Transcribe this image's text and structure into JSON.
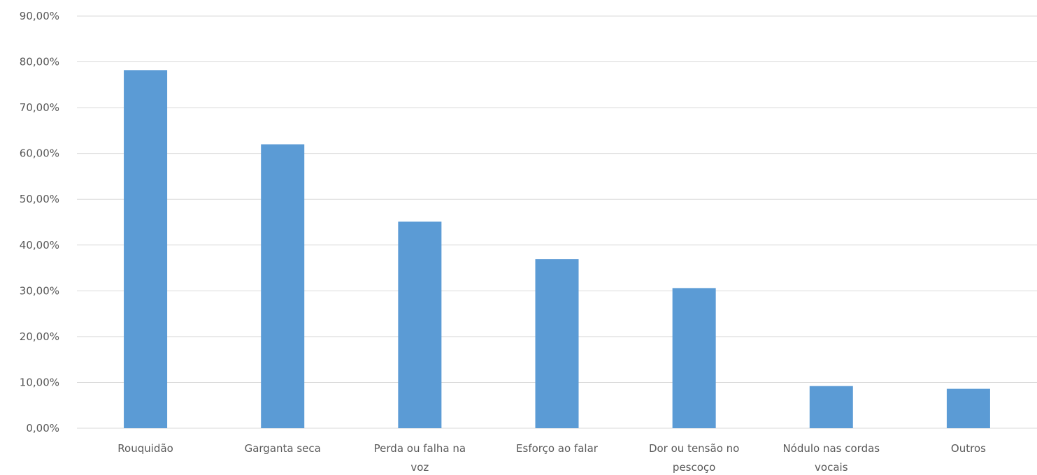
{
  "chart_data": {
    "type": "bar",
    "title": "",
    "xlabel": "",
    "ylabel": "",
    "categories": [
      [
        "Rouquidão"
      ],
      [
        "Garganta seca"
      ],
      [
        "Perda ou falha na",
        "voz"
      ],
      [
        "Esforço ao falar"
      ],
      [
        "Dor ou tensão no",
        "pescoço"
      ],
      [
        "Nódulo nas cordas",
        "vocais"
      ],
      [
        "Outros"
      ]
    ],
    "values": [
      78.2,
      62.0,
      45.1,
      36.9,
      30.6,
      9.2,
      8.6
    ],
    "ylim": [
      0,
      90
    ],
    "yticks": [
      "0,00%",
      "10,00%",
      "20,00%",
      "30,00%",
      "40,00%",
      "50,00%",
      "60,00%",
      "70,00%",
      "80,00%",
      "90,00%"
    ],
    "grid": true,
    "legend": "none",
    "colors": {
      "bar": "#5b9bd5",
      "grid": "#d9d9d9",
      "text": "#595959"
    }
  }
}
